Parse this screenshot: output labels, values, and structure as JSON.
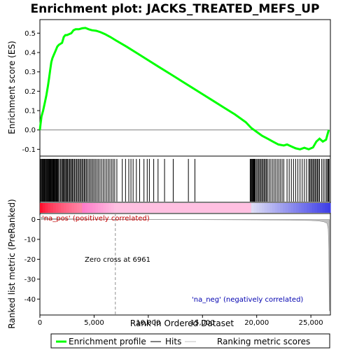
{
  "chart_data": {
    "type": "line",
    "title": "Enrichment plot: JACKS_TREATED_MEFS_UP",
    "xlabel": "Rank in Ordered Dataset",
    "ylabel_top": "Enrichment score (ES)",
    "ylabel_bottom": "Ranked list metric (PreRanked)",
    "x_ticks": [
      "0",
      "5,000",
      "10,000",
      "15,000",
      "20,000",
      "25,000"
    ],
    "es_ticks": [
      "0.5",
      "0.4",
      "0.3",
      "0.2",
      "0.1",
      "0.0",
      "-0.1"
    ],
    "metric_ticks": [
      "0",
      "-10",
      "-20",
      "-30",
      "-40"
    ],
    "x_range": [
      0,
      26800
    ],
    "es_range": [
      -0.135,
      0.57
    ],
    "metric_range": [
      -48,
      3
    ],
    "pos_label": "'na_pos' (positively correlated)",
    "neg_label": "'na_neg' (negatively correlated)",
    "zero_cross_label": "Zero cross at 6961",
    "zero_cross": 6961,
    "legend": {
      "enrichment": "Enrichment profile",
      "hits": "Hits",
      "ranking": "Ranking metric scores"
    },
    "colors": {
      "enrichment": "#00ff00",
      "hits": "#000000",
      "ranking": "#c0c0c0",
      "positive": "#ff0000",
      "negative": "#0000ff"
    },
    "enrichment_profile": [
      [
        0,
        0.0
      ],
      [
        60,
        0.03
      ],
      [
        150,
        0.07
      ],
      [
        300,
        0.1
      ],
      [
        450,
        0.14
      ],
      [
        600,
        0.18
      ],
      [
        750,
        0.23
      ],
      [
        850,
        0.27
      ],
      [
        950,
        0.31
      ],
      [
        1050,
        0.35
      ],
      [
        1150,
        0.37
      ],
      [
        1300,
        0.39
      ],
      [
        1450,
        0.41
      ],
      [
        1600,
        0.43
      ],
      [
        1750,
        0.44
      ],
      [
        1900,
        0.445
      ],
      [
        2050,
        0.45
      ],
      [
        2200,
        0.48
      ],
      [
        2350,
        0.49
      ],
      [
        2500,
        0.49
      ],
      [
        2700,
        0.495
      ],
      [
        2900,
        0.5
      ],
      [
        3100,
        0.515
      ],
      [
        3300,
        0.52
      ],
      [
        3600,
        0.52
      ],
      [
        3900,
        0.525
      ],
      [
        4200,
        0.527
      ],
      [
        4500,
        0.52
      ],
      [
        4800,
        0.515
      ],
      [
        5200,
        0.512
      ],
      [
        5600,
        0.505
      ],
      [
        6000,
        0.495
      ],
      [
        6500,
        0.48
      ],
      [
        7000,
        0.463
      ],
      [
        8000,
        0.43
      ],
      [
        9000,
        0.395
      ],
      [
        10000,
        0.36
      ],
      [
        11000,
        0.325
      ],
      [
        12000,
        0.29
      ],
      [
        13000,
        0.255
      ],
      [
        14000,
        0.22
      ],
      [
        15000,
        0.185
      ],
      [
        16000,
        0.15
      ],
      [
        17000,
        0.115
      ],
      [
        18000,
        0.08
      ],
      [
        19000,
        0.04
      ],
      [
        19500,
        0.01
      ],
      [
        20000,
        -0.01
      ],
      [
        20500,
        -0.03
      ],
      [
        21000,
        -0.045
      ],
      [
        21500,
        -0.06
      ],
      [
        22000,
        -0.075
      ],
      [
        22500,
        -0.08
      ],
      [
        22800,
        -0.075
      ],
      [
        23200,
        -0.085
      ],
      [
        23600,
        -0.095
      ],
      [
        24000,
        -0.1
      ],
      [
        24400,
        -0.092
      ],
      [
        24800,
        -0.1
      ],
      [
        25200,
        -0.09
      ],
      [
        25500,
        -0.06
      ],
      [
        25800,
        -0.045
      ],
      [
        26100,
        -0.06
      ],
      [
        26400,
        -0.05
      ],
      [
        26550,
        -0.02
      ],
      [
        26650,
        0.0
      ]
    ],
    "hits": [
      20,
      80,
      140,
      210,
      260,
      330,
      390,
      440,
      510,
      570,
      630,
      690,
      740,
      800,
      860,
      910,
      960,
      1010,
      1070,
      1120,
      1180,
      1230,
      1290,
      1340,
      1400,
      1460,
      1520,
      1580,
      1640,
      1700,
      1800,
      1900,
      2000,
      2080,
      2150,
      2230,
      2320,
      2400,
      2480,
      2560,
      2650,
      2740,
      2830,
      2920,
      3010,
      3100,
      3200,
      3300,
      3400,
      3500,
      3600,
      3700,
      3800,
      3900,
      4000,
      4100,
      4200,
      4300,
      4420,
      4540,
      4660,
      4780,
      4900,
      5020,
      5150,
      5280,
      5410,
      5550,
      5700,
      5850,
      6000,
      6150,
      6300,
      6450,
      6600,
      6750,
      6900,
      7100,
      7600,
      7900,
      8200,
      8400,
      8600,
      8900,
      9200,
      9600,
      9900,
      10100,
      10500,
      10900,
      11500,
      12300,
      13700,
      14300,
      19400,
      19460,
      19520,
      19580,
      19640,
      19700,
      19760,
      19820,
      19880,
      20000,
      20100,
      20200,
      20300,
      20400,
      20500,
      20600,
      20700,
      20800,
      20900,
      21000,
      21150,
      21300,
      21450,
      21600,
      21750,
      21900,
      22050,
      22200,
      22350,
      22500,
      22800,
      23000,
      23200,
      23400,
      23600,
      23800,
      24000,
      24200,
      24400,
      24600,
      24800,
      24900,
      25000,
      25100,
      25200,
      25300,
      25400,
      25500,
      25600,
      25700,
      25800,
      26000,
      26150,
      26300,
      26450,
      26550,
      26620,
      26680
    ],
    "metric_profile": [
      [
        0,
        2.0
      ],
      [
        80,
        1.2
      ],
      [
        300,
        0.8
      ],
      [
        1000,
        0.5
      ],
      [
        2000,
        0.35
      ],
      [
        4000,
        0.2
      ],
      [
        6000,
        0.08
      ],
      [
        6961,
        0.0
      ],
      [
        10000,
        -0.05
      ],
      [
        15000,
        -0.1
      ],
      [
        20000,
        -0.2
      ],
      [
        23000,
        -0.35
      ],
      [
        25000,
        -0.5
      ],
      [
        25800,
        -0.8
      ],
      [
        26200,
        -1.2
      ],
      [
        26500,
        -2.0
      ],
      [
        26600,
        -5.0
      ],
      [
        26650,
        -15.0
      ],
      [
        26700,
        -46.0
      ],
      [
        26720,
        -46.0
      ]
    ]
  }
}
